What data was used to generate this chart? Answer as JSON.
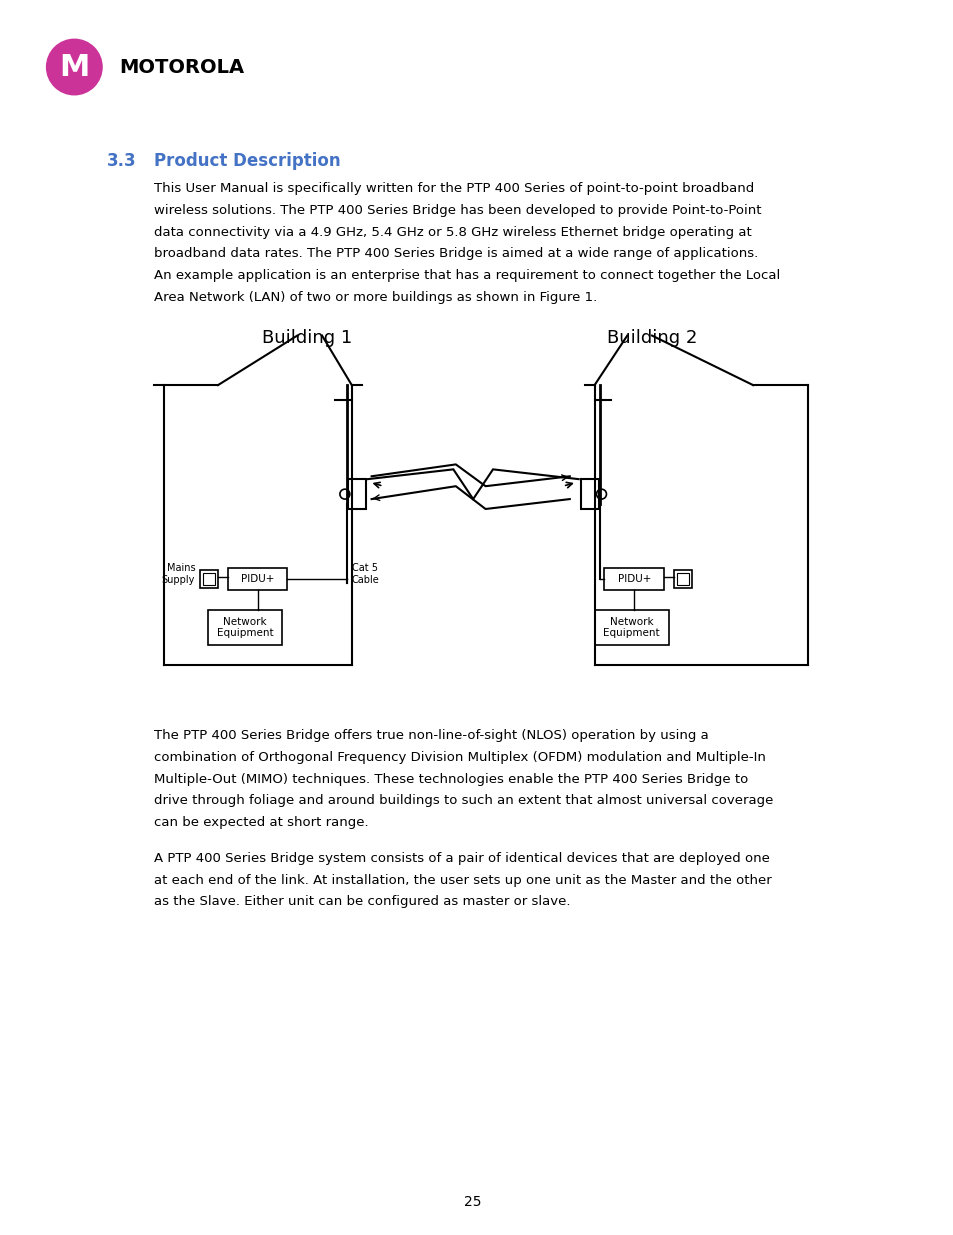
{
  "bg_color": "#ffffff",
  "page_number": "25",
  "motorola_color": "#cc3399",
  "heading_color": "#4472c4",
  "heading_number": "3.3",
  "heading_text": "Product Description",
  "paragraph1": "This User Manual is specifically written for the PTP 400 Series of point-to-point broadband\nwireless solutions. The PTP 400 Series Bridge has been developed to provide Point-to-Point\ndata connectivity via a 4.9 GHz, 5.4 GHz or 5.8 GHz wireless Ethernet bridge operating at\nbroadband data rates. The PTP 400 Series Bridge is aimed at a wide range of applications.\nAn example application is an enterprise that has a requirement to connect together the Local\nArea Network (LAN) of two or more buildings as shown in Figure 1.",
  "paragraph2": "The PTP 400 Series Bridge offers true non-line-of-sight (NLOS) operation by using a\ncombination of Orthogonal Frequency Division Multiplex (OFDM) modulation and Multiple-In\nMultiple-Out (MIMO) techniques. These technologies enable the PTP 400 Series Bridge to\ndrive through foliage and around buildings to such an extent that almost universal coverage\ncan be expected at short range.",
  "paragraph3": "A PTP 400 Series Bridge system consists of a pair of identical devices that are deployed one\nat each end of the link. At installation, the user sets up one unit as the Master and the other\nas the Slave. Either unit can be configured as master or slave.",
  "building1_label": "Building 1",
  "building2_label": "Building 2",
  "mains_supply_label": "Mains\nSupply",
  "cat5_label": "Cat 5\nCable",
  "pidu_label": "PIDU+",
  "network_eq_label": "Network\nEquipment"
}
